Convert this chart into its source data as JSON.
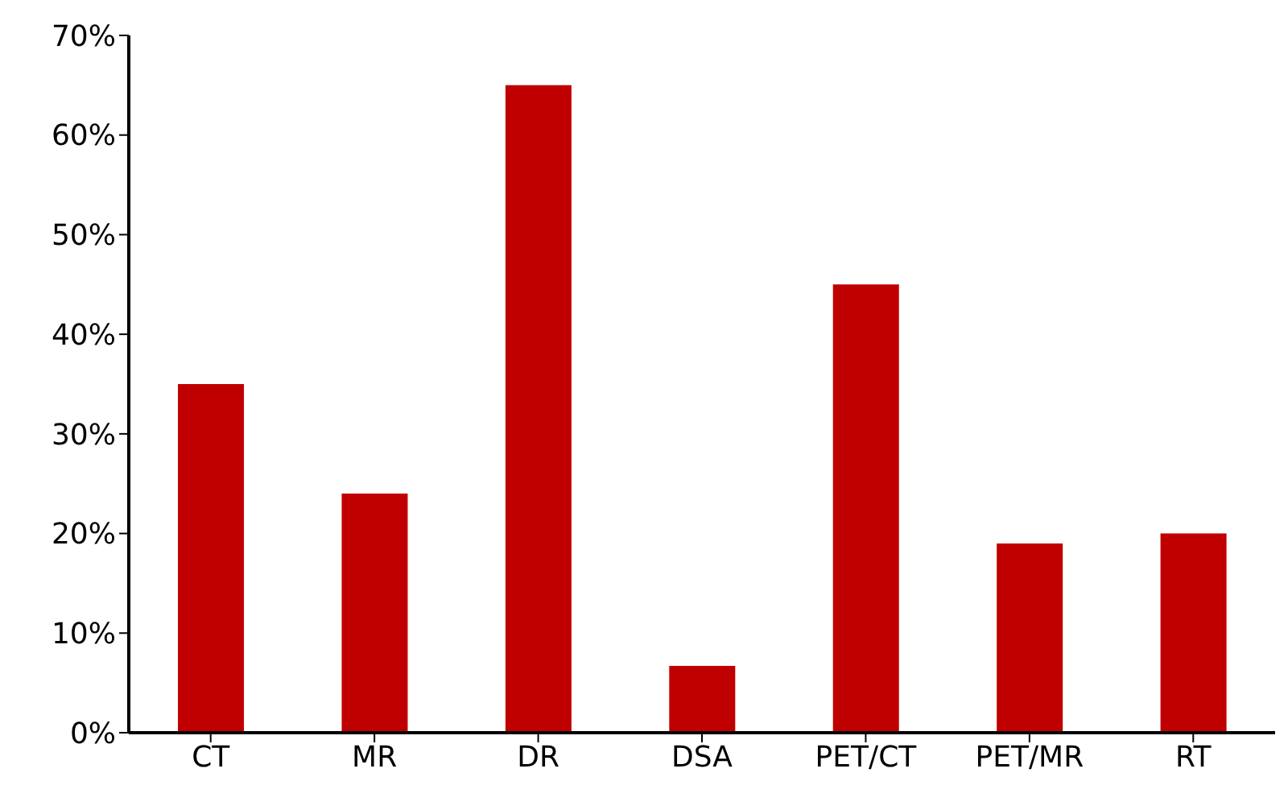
{
  "chart_data": {
    "type": "bar",
    "categories": [
      "CT",
      "MR",
      "DR",
      "DSA",
      "PET/CT",
      "PET/MR",
      "RT"
    ],
    "values": [
      35,
      24,
      65,
      6.7,
      45,
      19,
      20
    ],
    "color": "#c00000",
    "ylim": [
      0,
      70
    ],
    "yticks": [
      {
        "value": 0,
        "label": "0%"
      },
      {
        "value": 10,
        "label": "10%"
      },
      {
        "value": 20,
        "label": "20%"
      },
      {
        "value": 30,
        "label": "30%"
      },
      {
        "value": 40,
        "label": "40%"
      },
      {
        "value": 50,
        "label": "50%"
      },
      {
        "value": 60,
        "label": "60%"
      },
      {
        "value": 70,
        "label": "70%"
      }
    ],
    "grid": false
  }
}
